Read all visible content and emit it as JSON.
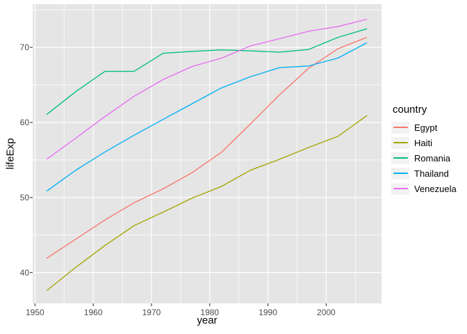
{
  "figure": {
    "background": "#FFFFFF"
  },
  "axes": {
    "x_title": "year",
    "y_title": "lifeExp",
    "x_tick_labels": [
      "1950",
      "1960",
      "1970",
      "1980",
      "1990",
      "2000"
    ],
    "y_tick_labels": [
      "40",
      "50",
      "60",
      "70"
    ]
  },
  "legend": {
    "title": "country",
    "entries": [
      "Egypt",
      "Haiti",
      "Romania",
      "Thailand",
      "Venezuela"
    ]
  },
  "colors": {
    "panel_bg": "#E5E5E5",
    "grid": "#FFFFFF",
    "tick_mark": "#333333",
    "tick_label": "#4D4D4D",
    "axis_title": "#000000",
    "legend_key_bg": "#F2F2F2"
  },
  "chart_data": {
    "type": "line",
    "title": "",
    "xlabel": "year",
    "ylabel": "lifeExp",
    "legend_title": "country",
    "legend_position": "right",
    "grid": "major_and_minor",
    "x": [
      1952,
      1957,
      1962,
      1967,
      1972,
      1977,
      1982,
      1987,
      1992,
      1997,
      2002,
      2007
    ],
    "series": [
      {
        "name": "Egypt",
        "color": "#F8766D",
        "values": [
          41.893,
          44.444,
          46.992,
          49.293,
          51.137,
          53.319,
          56.006,
          59.797,
          63.674,
          67.217,
          69.806,
          71.338
        ]
      },
      {
        "name": "Haiti",
        "color": "#A3A500",
        "values": [
          37.579,
          40.696,
          43.59,
          46.243,
          48.042,
          49.923,
          51.461,
          53.636,
          55.089,
          56.671,
          58.137,
          60.916
        ]
      },
      {
        "name": "Romania",
        "color": "#00BF7D",
        "values": [
          61.05,
          64.1,
          66.8,
          66.8,
          69.21,
          69.46,
          69.66,
          69.53,
          69.36,
          69.72,
          71.322,
          72.476
        ]
      },
      {
        "name": "Thailand",
        "color": "#00B0F6",
        "values": [
          50.848,
          53.63,
          56.061,
          58.285,
          60.405,
          62.494,
          64.597,
          66.084,
          67.298,
          67.521,
          68.564,
          70.616
        ]
      },
      {
        "name": "Venezuela",
        "color": "#E76BF3",
        "values": [
          55.088,
          57.907,
          60.77,
          63.476,
          65.712,
          67.456,
          68.557,
          70.19,
          71.15,
          72.146,
          72.766,
          73.747
        ]
      }
    ],
    "xlim": [
      1949.6,
      2009.5
    ],
    "ylim": [
      35.89,
      75.75
    ],
    "x_major_ticks": [
      1950,
      1960,
      1970,
      1980,
      1990,
      2000
    ],
    "y_major_ticks": [
      40,
      50,
      60,
      70
    ],
    "x_minor_ticks": [
      1955,
      1965,
      1975,
      1985,
      1995,
      2005
    ],
    "y_minor_ticks": [
      45,
      55,
      65,
      75
    ]
  }
}
